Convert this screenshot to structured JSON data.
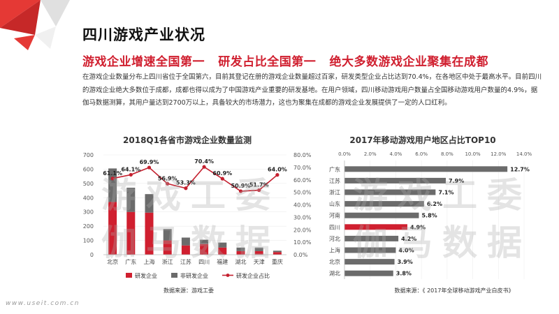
{
  "page": {
    "title": "四川游戏产业状况",
    "subtitle": "游戏企业增速全国第一   研发占比全国第一   绝大多数游戏企业聚集在成都",
    "paragraph": "在游戏企业数量分布上四川省位于全国第六，目前其登记在册的游戏企业数量超过百家，研发类型企业占比达到70.4%，在各地区中处于最高水平。目前四川的游戏企业绝大多数位于成都，成都也得以成为了中国游戏产业重要的研发基地。在用户领域，四川移动游戏用户数量占全国移动游戏用户数量的4.9%，据伽马数据测算，其用户量达到2700万以上，具备较大的市场潜力，这也为聚集在成都的游戏企业发展提供了一定的人口红利。",
    "watermark_line1": "游戏工委",
    "watermark_line2": "伽马数据",
    "footer_url": "www.useit.com.cn",
    "colors": {
      "red": "#d01f2f",
      "gray": "#6b6b6b",
      "line": "#c41f2e",
      "corner_red": "#e53935",
      "corner_gray": "#d9d9d9"
    }
  },
  "chart_data": [
    {
      "type": "bar",
      "title": "2018Q1各省市游戏企业数量监测",
      "categories": [
        "北京",
        "广东",
        "上海",
        "浙江",
        "江苏",
        "四川",
        "福建",
        "湖北",
        "天津",
        "重庆"
      ],
      "series": [
        {
          "name": "研发企业",
          "values": [
            370,
            300,
            295,
            100,
            65,
            75,
            50,
            25,
            25,
            18
          ]
        },
        {
          "name": "非研发企业",
          "values": [
            235,
            170,
            130,
            80,
            55,
            30,
            35,
            25,
            25,
            10
          ]
        },
        {
          "name": "研发企业占比",
          "values": [
            61.1,
            64.1,
            69.9,
            56.9,
            53.3,
            70.4,
            60.9,
            50.9,
            51.7,
            64.0
          ],
          "axis": "right",
          "kind": "line"
        }
      ],
      "data_labels": [
        "61.1%",
        "64.1%",
        "69.9%",
        "56.9%",
        "53.3%",
        "70.4%",
        "60.9%",
        "50.9%",
        "51.7%",
        "64.0%"
      ],
      "ylim": [
        0,
        700
      ],
      "yticks": [
        "0",
        "100",
        "200",
        "300",
        "400",
        "500",
        "600",
        "700"
      ],
      "y2lim": [
        0,
        80
      ],
      "y2ticks": [
        "0.0%",
        "10.0%",
        "20.0%",
        "30.0%",
        "40.0%",
        "50.0%",
        "60.0%",
        "70.0%",
        "80.0%"
      ],
      "legend": [
        "研发企业",
        "非研发企业",
        "研发企业占比"
      ],
      "legend_position": "bottom",
      "source": "数据来源：游戏工委"
    },
    {
      "type": "bar",
      "orientation": "horizontal",
      "title": "2017年移动游戏用户地区占比TOP10",
      "categories": [
        "广东",
        "江苏",
        "浙江",
        "山东",
        "河南",
        "四川",
        "河北",
        "上海",
        "北京",
        "湖北"
      ],
      "values": [
        12.7,
        7.9,
        7.1,
        6.2,
        5.8,
        4.9,
        4.2,
        4.0,
        3.9,
        3.8
      ],
      "data_labels": [
        "12.7%",
        "7.9%",
        "7.1%",
        "6.2%",
        "5.8%",
        "4.9%",
        "4.2%",
        "4.0%",
        "3.9%",
        "3.8%"
      ],
      "highlight": "四川",
      "xlim": [
        0,
        14
      ],
      "xticks": [
        "0.0%",
        "2.0%",
        "4.0%",
        "6.0%",
        "8.0%",
        "10.0%",
        "12.0%",
        "14.0%"
      ],
      "xaxis_position": "top",
      "source": "数据来源：《 2017年全球移动游戏产业白皮书》"
    }
  ]
}
